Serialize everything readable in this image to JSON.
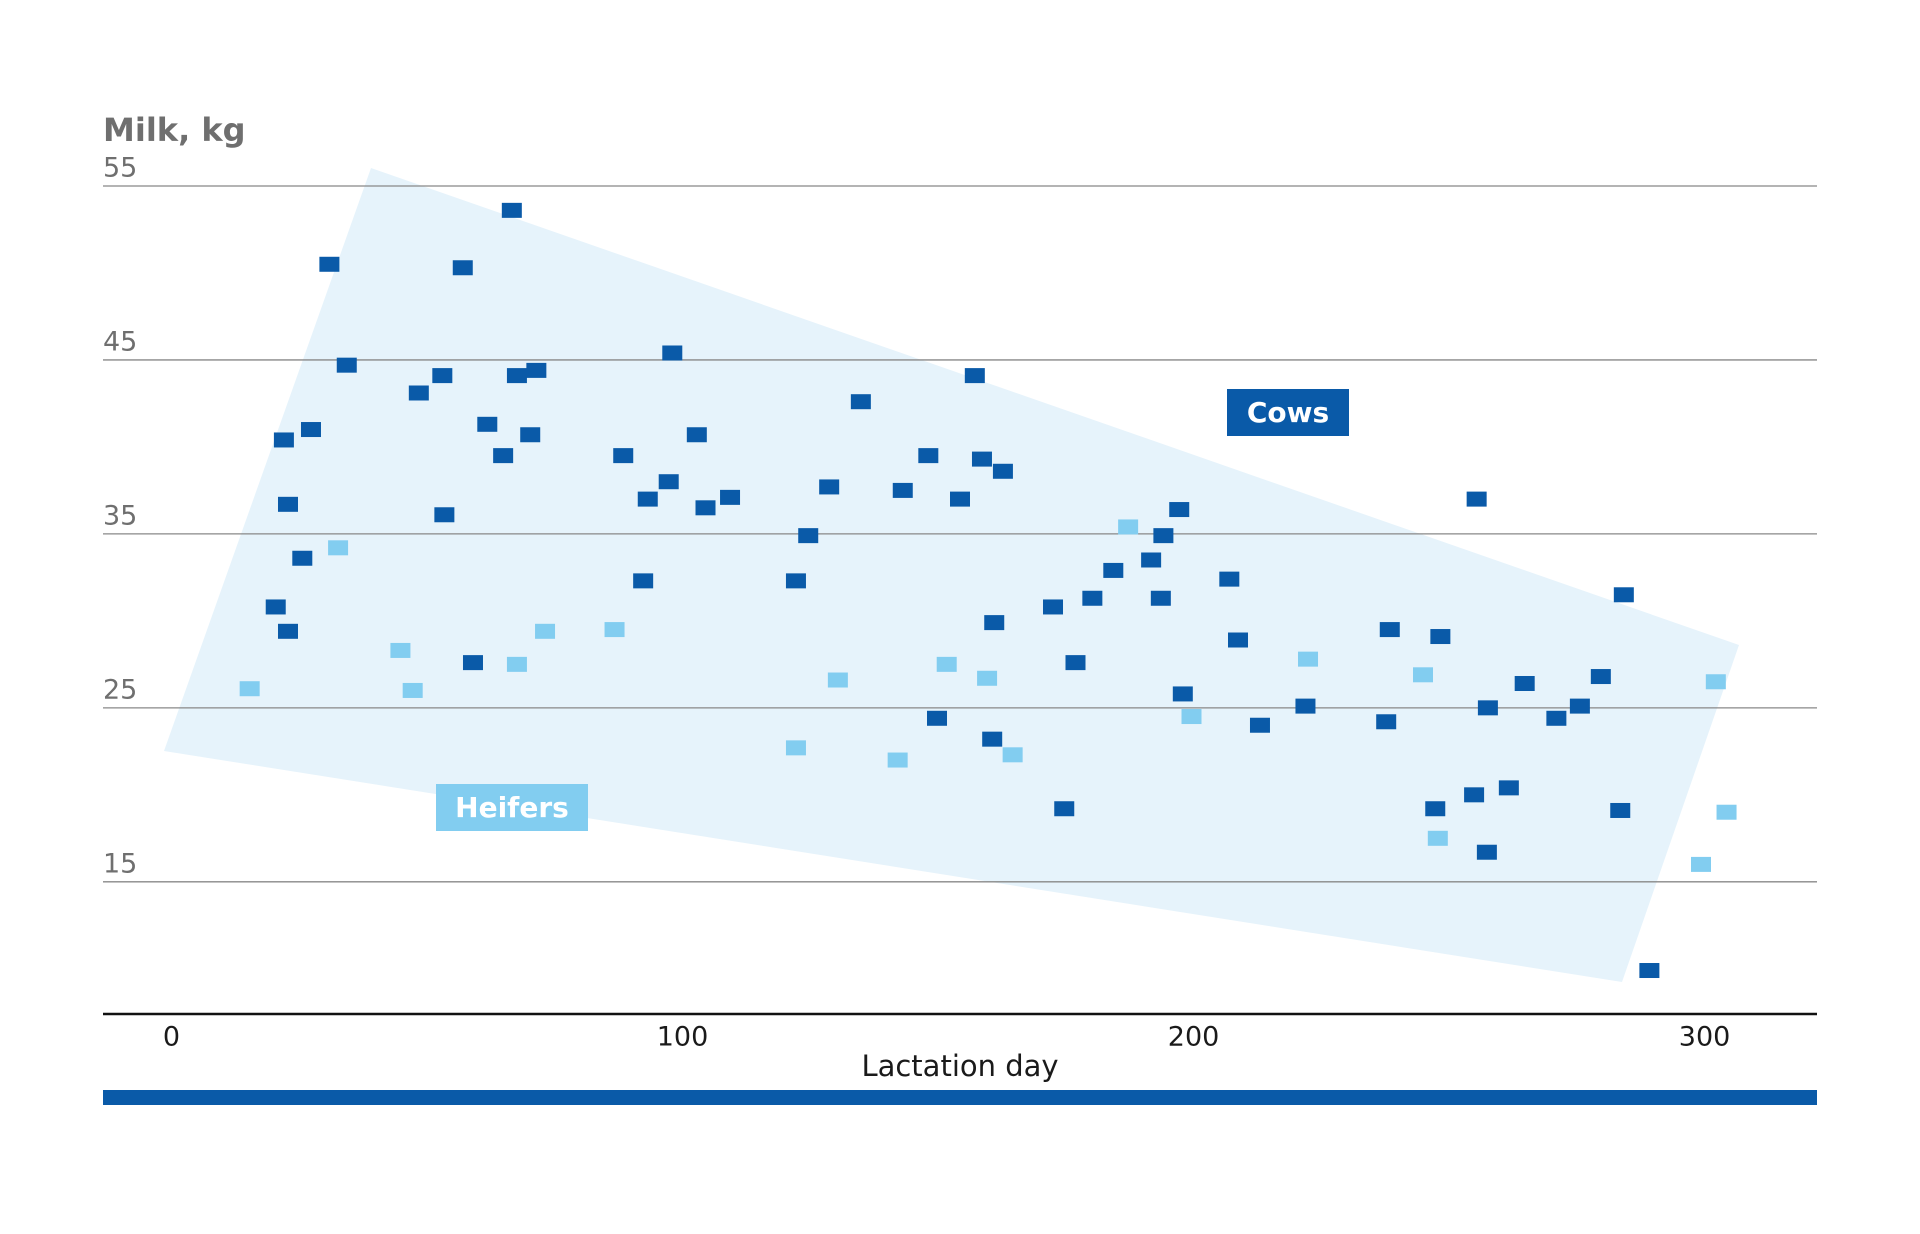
{
  "chart_data": {
    "type": "scatter",
    "y_label": "Milk, kg",
    "x_label": "Lactation day",
    "xlim": [
      -13.4,
      322
    ],
    "xticks": [
      0,
      100,
      200,
      300
    ],
    "ylim": [
      7.4,
      55
    ],
    "yticks": [
      15,
      25,
      35,
      45,
      55
    ],
    "grid": true,
    "series": [
      {
        "name": "Cows",
        "color": "#0a5aa8",
        "x": [
          30.9,
          22,
          27.3,
          22.8,
          25.6,
          20.4,
          22.8,
          34.3,
          48.4,
          53,
          57,
          53.4,
          59,
          61.8,
          64.9,
          66.6,
          67.6,
          71.4,
          70.2,
          88.4,
          93.2,
          98,
          97.3,
          92.3,
          102.8,
          104.5,
          109.3,
          122.2,
          124.6,
          128.7,
          134.9,
          143.1,
          148.1,
          149.8,
          154.3,
          157.2,
          158.6,
          162.7,
          161,
          160.6,
          172.5,
          174.7,
          176.9,
          180.2,
          184.3,
          191.7,
          194.1,
          193.6,
          197.2,
          197.9,
          207,
          208.7,
          213,
          221.9,
          238.4,
          237.7,
          248.3,
          247.3,
          255.4,
          254.9,
          257.6,
          257.4,
          261.7,
          264.8,
          271,
          275.6,
          279.7,
          284.2,
          283.5,
          289.2
        ],
        "values": [
          50.5,
          40.4,
          41,
          36.7,
          33.6,
          30.8,
          29.4,
          44.7,
          43.1,
          44.1,
          50.3,
          36.1,
          27.6,
          41.3,
          39.5,
          53.6,
          44.1,
          44.4,
          40.7,
          39.5,
          37,
          45.4,
          38,
          32.3,
          40.7,
          36.5,
          37.1,
          32.3,
          34.9,
          37.7,
          42.6,
          37.5,
          39.5,
          24.4,
          37,
          44.1,
          39.3,
          38.6,
          29.9,
          23.2,
          30.8,
          19.2,
          27.6,
          31.3,
          32.9,
          33.5,
          34.9,
          31.3,
          36.4,
          25.8,
          32.4,
          28.9,
          24,
          25.1,
          29.5,
          24.2,
          29.1,
          19.2,
          37,
          20,
          25,
          16.7,
          20.4,
          26.4,
          24.4,
          25.1,
          26.8,
          31.5,
          19.1,
          9.9
        ]
      },
      {
        "name": "Heifers",
        "color": "#82cdf0",
        "x": [
          15.3,
          32.6,
          44.8,
          47.2,
          67.6,
          73.1,
          86.7,
          122.2,
          130.4,
          142.1,
          151.7,
          159.6,
          164.6,
          187.2,
          199.6,
          222.4,
          244.9,
          247.8,
          299.3,
          302.2,
          304.3
        ],
        "values": [
          26.1,
          34.2,
          28.3,
          26,
          27.5,
          29.4,
          29.5,
          22.7,
          26.6,
          22,
          27.5,
          26.7,
          22.3,
          35.4,
          24.5,
          27.8,
          26.9,
          17.5,
          16,
          26.5,
          19
        ]
      }
    ]
  }
}
